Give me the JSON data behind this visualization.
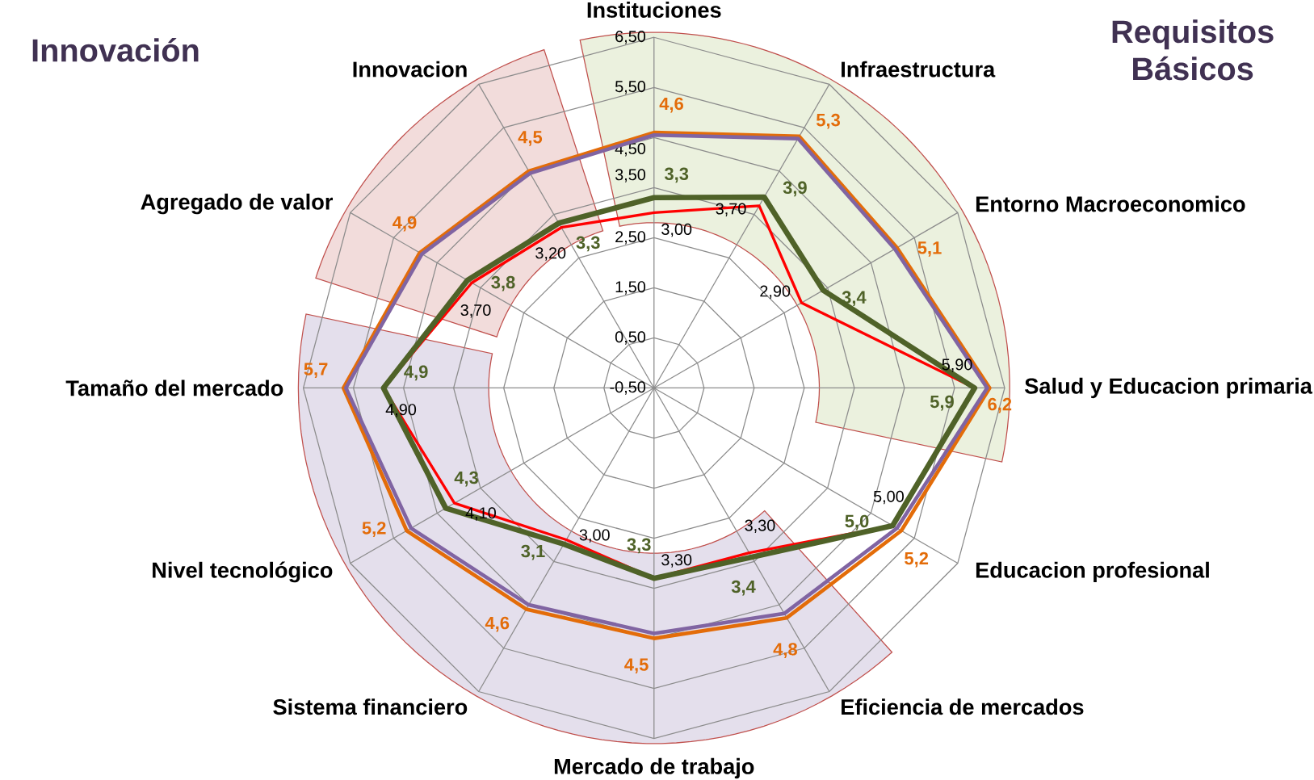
{
  "chart_data": {
    "type": "radar",
    "categories": [
      "Instituciones",
      "Infraestructura",
      "Entorno Macroeconomico",
      "Salud y Educacion primaria",
      "Educacion profesional",
      "Eficiencia de mercados",
      "Mercado de trabajo",
      "Sistema financiero",
      "Nivel tecnológico",
      "Tamaño del mercado",
      "Agregado de valor",
      "Innovacion"
    ],
    "ylim": [
      -0.5,
      6.5
    ],
    "yticks": [
      {
        "value": -0.5,
        "label": "-0,50"
      },
      {
        "value": 0.5,
        "label": "0,50"
      },
      {
        "value": 1.5,
        "label": "1,50"
      },
      {
        "value": 2.5,
        "label": "2,50"
      },
      {
        "value": 3.5,
        "label": "3,50"
      },
      {
        "value": 4.5,
        "label": "4,50"
      },
      {
        "value": 5.5,
        "label": "5,50"
      },
      {
        "value": 6.5,
        "label": "6,50"
      }
    ],
    "grid": true,
    "annotations": [
      "Innovación",
      "Requisitos Básicos"
    ],
    "series": [
      {
        "color": "#ff0000",
        "values": [
          3.0,
          3.7,
          2.9,
          5.9,
          5.0,
          3.3,
          3.3,
          3.0,
          4.1,
          4.9,
          3.7,
          3.2
        ],
        "value_labels": [
          "3,00",
          "3,70",
          "2,90",
          "5,90",
          "5,00",
          "3,30",
          "3,30",
          "3,00",
          "4,10",
          "4,90",
          "3,70",
          "3,20"
        ]
      },
      {
        "color": "#4f6228",
        "values": [
          3.3,
          3.9,
          3.4,
          5.9,
          5.0,
          3.4,
          3.3,
          3.1,
          4.3,
          4.9,
          3.8,
          3.3
        ],
        "value_labels": [
          "3,3",
          "3,9",
          "3,4",
          "5,9",
          "5,0",
          "3,4",
          "3,3",
          "3,1",
          "4,3",
          "4,9",
          "3,8",
          "3,3"
        ]
      },
      {
        "color": "#e36c09",
        "values": [
          4.6,
          5.3,
          5.1,
          6.2,
          5.2,
          4.8,
          4.5,
          4.6,
          5.2,
          5.7,
          4.9,
          4.5
        ],
        "value_labels": [
          "4,6",
          "5,3",
          "5,1",
          "6,2",
          "5,2",
          "4,8",
          "4,5",
          "4,6",
          "5,2",
          "5,7",
          "4,9",
          "4,5"
        ]
      },
      {
        "color": "#8064a2",
        "values": [
          4.55,
          5.25,
          5.05,
          6.15,
          5.1,
          4.7,
          4.4,
          4.5,
          5.1,
          5.65,
          4.85,
          4.45
        ]
      }
    ]
  }
}
